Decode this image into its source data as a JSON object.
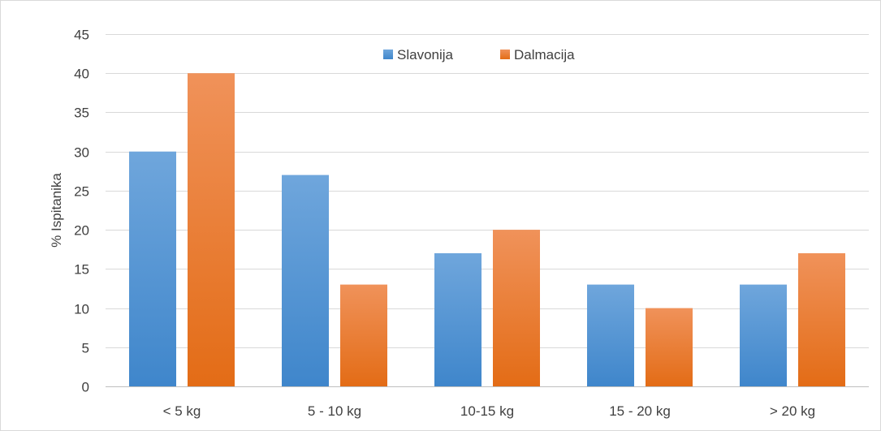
{
  "chart_data": {
    "type": "bar",
    "title": "",
    "xlabel": "",
    "ylabel": "% Ispitanika",
    "categories": [
      "< 5 kg",
      "5 - 10 kg",
      "10-15 kg",
      "15 - 20 kg",
      "> 20 kg"
    ],
    "series": [
      {
        "name": "Slavonija",
        "values": [
          30,
          27,
          17,
          13,
          13
        ],
        "color": "#5b9bd5"
      },
      {
        "name": "Dalmacija",
        "values": [
          40,
          13,
          20,
          10,
          17
        ],
        "color": "#ed7d31"
      }
    ],
    "ylim": [
      0,
      45
    ],
    "yticks": [
      0,
      5,
      10,
      15,
      20,
      25,
      30,
      35,
      40,
      45
    ],
    "grid": true,
    "legend_position": "top"
  }
}
